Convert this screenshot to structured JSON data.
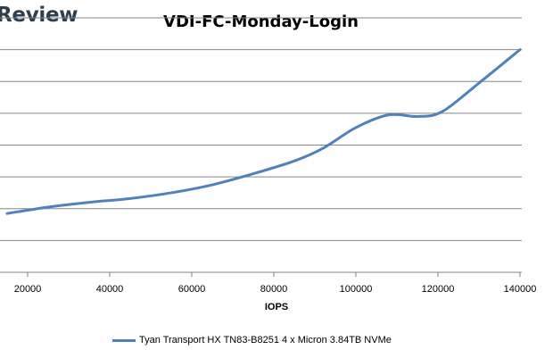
{
  "header": {
    "brand_text": "Review"
  },
  "colors": {
    "series_line": "#4f81bd",
    "gridline": "#868686",
    "axis": "#868686"
  },
  "chart_data": {
    "type": "line",
    "title": "VDI-FC-Monday-Login",
    "xlabel": "IOPS",
    "ylabel": "",
    "xticks": [
      20000,
      40000,
      60000,
      80000,
      100000,
      120000,
      140000
    ],
    "xlim": [
      15000,
      140000
    ],
    "ylim": [
      0,
      8
    ],
    "grid": true,
    "legend_position": "bottom",
    "series": [
      {
        "name": "Tyan Transport HX TN83-B8251 4 x Micron 3.84TB NVMe",
        "x": [
          15000,
          25000,
          35000,
          45000,
          55000,
          65000,
          75000,
          85000,
          92000,
          100000,
          108000,
          115000,
          121000,
          130000,
          140000
        ],
        "y": [
          1.85,
          2.05,
          2.2,
          2.32,
          2.5,
          2.75,
          3.1,
          3.5,
          3.9,
          4.55,
          4.95,
          4.9,
          5.05,
          5.95,
          7.0
        ]
      }
    ]
  }
}
